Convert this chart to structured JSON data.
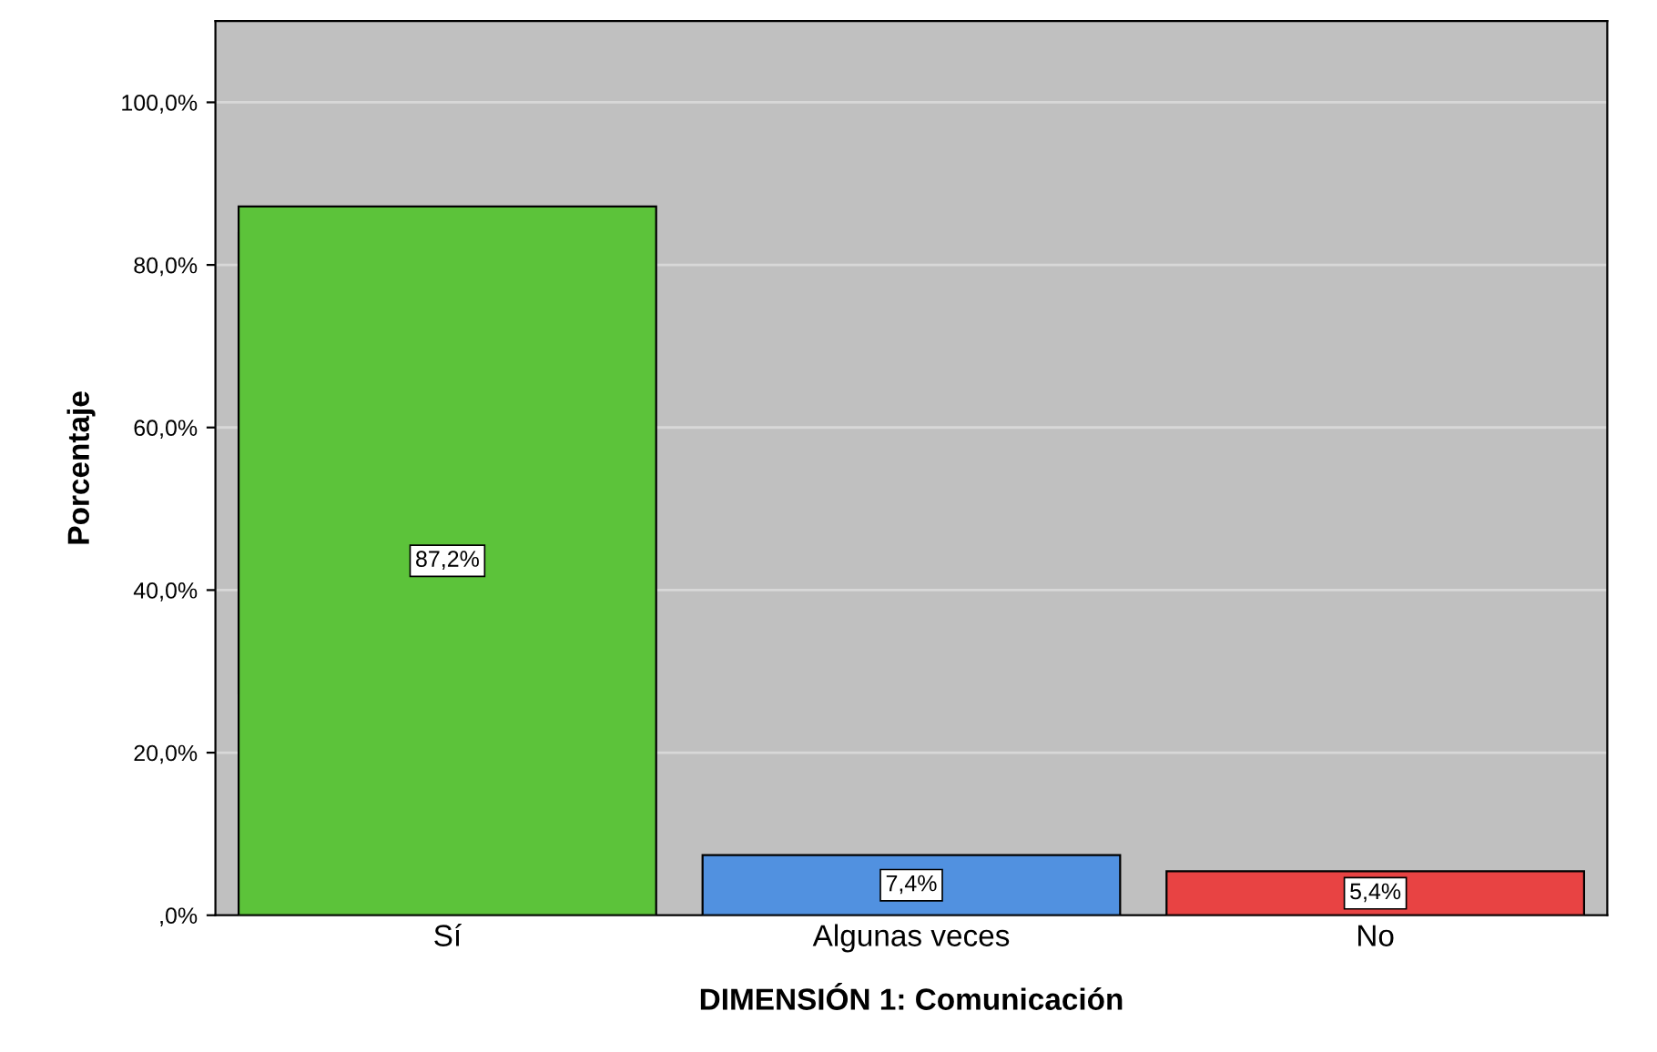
{
  "chart_data": {
    "type": "bar",
    "xlabel": "DIMENSIÓN 1: Comunicación",
    "ylabel": "Porcentaje",
    "categories": [
      "Sí",
      "Algunas veces",
      "No"
    ],
    "values": [
      87.2,
      7.4,
      5.4
    ],
    "colors": [
      "#5cc33a",
      "#5191e0",
      "#e84343"
    ],
    "value_labels": [
      "87,2%",
      "7,4%",
      "5,4%"
    ],
    "ylim": [
      0,
      110
    ],
    "yticks": [
      {
        "value": 0,
        "label": ",0%"
      },
      {
        "value": 20,
        "label": "20,0%"
      },
      {
        "value": 40,
        "label": "40,0%"
      },
      {
        "value": 60,
        "label": "60,0%"
      },
      {
        "value": 80,
        "label": "80,0%"
      },
      {
        "value": 100,
        "label": "100,0%"
      }
    ],
    "grid": "y"
  }
}
